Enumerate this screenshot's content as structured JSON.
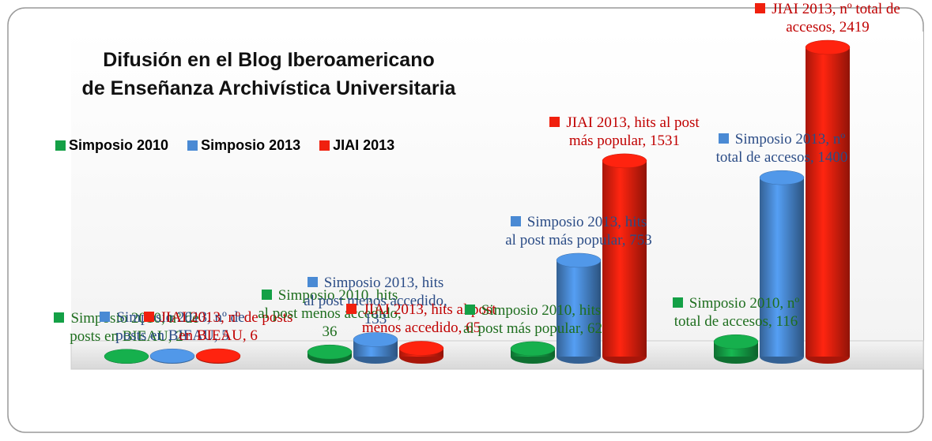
{
  "chart_data": {
    "type": "bar3d",
    "title": "Difusión en el Blog Iberoamericano",
    "subtitle": "de Enseñanza Archivística Universitaria",
    "categories": [
      null,
      null,
      null,
      null
    ],
    "legend": "top-left",
    "series": [
      {
        "name": "Simposio 2010",
        "color": "#14a046",
        "label_color": "#1e6e1e",
        "values": [
          2,
          36,
          62,
          116
        ],
        "value_labels": [
          "Simposio 2010, nº de posts en BIEAU, 2",
          "Simposio 2010, hits al post menos accedido, 36",
          "Simposio 2010, hits al post más popular, 62",
          "Simposio 2010, nº total de accesos, 116"
        ]
      },
      {
        "name": "Simposio 2013",
        "color": "#4a8ad4",
        "label_color": "#2b4c86",
        "values": [
          5,
          133,
          753,
          1400
        ],
        "value_labels": [
          "Simposio 2013, nº de posts en BIEAU, 5",
          "Simposio 2013, hits al post menos accedido, 133",
          "Simposio 2013, hits al post más popular, 753",
          "Simposio 2013, nº total de accesos, 1400"
        ]
      },
      {
        "name": "JIAI 2013",
        "color": "#f0200e",
        "label_color": "#c00000",
        "values": [
          6,
          65,
          1531,
          2419
        ],
        "value_labels": [
          "JIAI 2013, nº de posts en BIEAU, 6",
          "JIAI 2013, hits al post menos accedido, 65",
          "JIAI 2013, hits al post más popular, 1531",
          "JIAI 2013, nº total de accesos, 2419"
        ]
      }
    ]
  }
}
